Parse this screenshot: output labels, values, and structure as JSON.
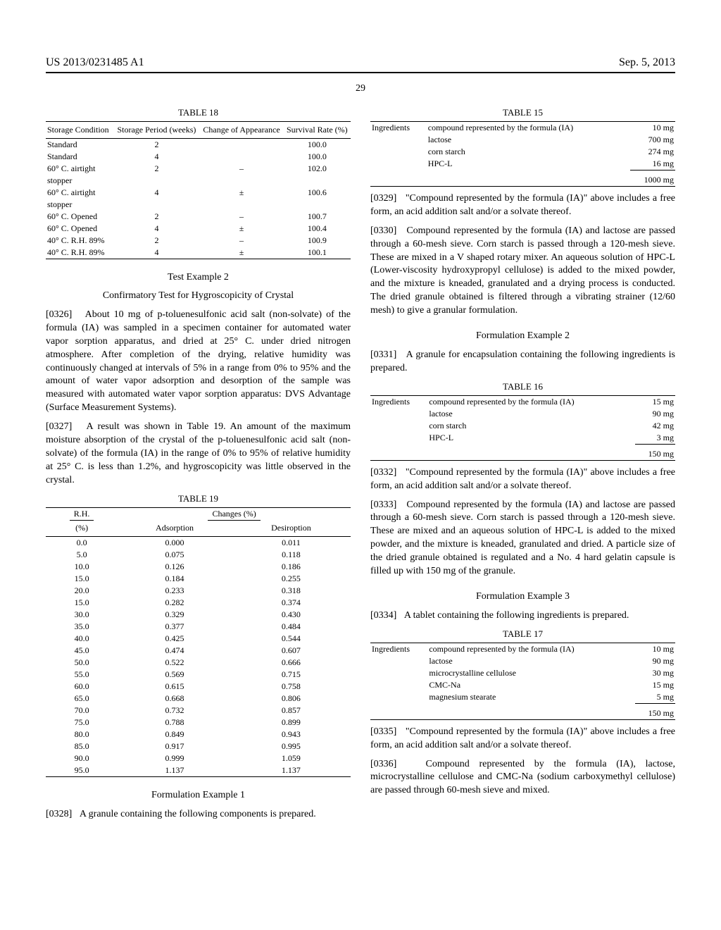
{
  "header": {
    "left": "US 2013/0231485 A1",
    "right": "Sep. 5, 2013",
    "page": "29"
  },
  "table18": {
    "caption": "TABLE 18",
    "headers": [
      "Storage Condition",
      "Storage Period (weeks)",
      "Change of Appearance",
      "Survival Rate (%)"
    ],
    "rows": [
      [
        "Standard",
        "2",
        "",
        "100.0"
      ],
      [
        "Standard",
        "4",
        "",
        "100.0"
      ],
      [
        "60° C. airtight",
        "2",
        "–",
        "102.0"
      ],
      [
        "stopper",
        "",
        "",
        ""
      ],
      [
        "60° C. airtight",
        "4",
        "±",
        "100.6"
      ],
      [
        "stopper",
        "",
        "",
        ""
      ],
      [
        "60° C. Opened",
        "2",
        "–",
        "100.7"
      ],
      [
        "60° C. Opened",
        "4",
        "±",
        "100.4"
      ],
      [
        "40° C. R.H. 89%",
        "2",
        "–",
        "100.9"
      ],
      [
        "40° C. R.H. 89%",
        "4",
        "±",
        "100.1"
      ]
    ]
  },
  "testEx2": {
    "title": "Test Example 2",
    "subtitle": "Confirmatory Test for Hygroscopicity of Crystal"
  },
  "para0326": {
    "num": "[0326]",
    "text": "About 10 mg of p-toluenesulfonic acid salt (non-solvate) of the formula (IA) was sampled in a specimen container for automated water vapor sorption apparatus, and dried at 25° C. under dried nitrogen atmosphere. After completion of the drying, relative humidity was continuously changed at intervals of 5% in a range from 0% to 95% and the amount of water vapor adsorption and desorption of the sample was measured with automated water vapor sorption apparatus: DVS Advantage (Surface Measurement Systems)."
  },
  "para0327": {
    "num": "[0327]",
    "text": "A result was shown in Table 19. An amount of the maximum moisture absorption of the crystal of the p-toluenesulfonic acid salt (non-solvate) of the formula (IA) in the range of 0% to 95% of relative humidity at 25° C. is less than 1.2%, and hygroscopicity was little observed in the crystal."
  },
  "table19": {
    "caption": "TABLE 19",
    "rh": "R.H.",
    "pct": "(%)",
    "changes": "Changes (%)",
    "ads": "Adsorption",
    "des": "Desiroption",
    "rows": [
      [
        "0.0",
        "0.000",
        "0.011"
      ],
      [
        "5.0",
        "0.075",
        "0.118"
      ],
      [
        "10.0",
        "0.126",
        "0.186"
      ],
      [
        "15.0",
        "0.184",
        "0.255"
      ],
      [
        "20.0",
        "0.233",
        "0.318"
      ],
      [
        "15.0",
        "0.282",
        "0.374"
      ],
      [
        "30.0",
        "0.329",
        "0.430"
      ],
      [
        "35.0",
        "0.377",
        "0.484"
      ],
      [
        "40.0",
        "0.425",
        "0.544"
      ],
      [
        "45.0",
        "0.474",
        "0.607"
      ],
      [
        "50.0",
        "0.522",
        "0.666"
      ],
      [
        "55.0",
        "0.569",
        "0.715"
      ],
      [
        "60.0",
        "0.615",
        "0.758"
      ],
      [
        "65.0",
        "0.668",
        "0.806"
      ],
      [
        "70.0",
        "0.732",
        "0.857"
      ],
      [
        "75.0",
        "0.788",
        "0.899"
      ],
      [
        "80.0",
        "0.849",
        "0.943"
      ],
      [
        "85.0",
        "0.917",
        "0.995"
      ],
      [
        "90.0",
        "0.999",
        "1.059"
      ],
      [
        "95.0",
        "1.137",
        "1.137"
      ]
    ]
  },
  "formEx1": {
    "title": "Formulation Example 1"
  },
  "para0328": {
    "num": "[0328]",
    "text": "A granule containing the following components is prepared."
  },
  "table15": {
    "caption": "TABLE 15",
    "label": "Ingredients",
    "rows": [
      [
        "compound represented by the formula (IA)",
        "10 mg"
      ],
      [
        "lactose",
        "700 mg"
      ],
      [
        "corn starch",
        "274 mg"
      ],
      [
        "HPC-L",
        "16 mg"
      ]
    ],
    "total": "1000 mg"
  },
  "para0329": {
    "num": "[0329]",
    "text": "\"Compound represented by the formula (IA)\" above includes a free form, an acid addition salt and/or a solvate thereof."
  },
  "para0330": {
    "num": "[0330]",
    "text": "Compound represented by the formula (IA) and lactose are passed through a 60-mesh sieve. Corn starch is passed through a 120-mesh sieve. These are mixed in a V shaped rotary mixer. An aqueous solution of HPC-L (Lower-viscosity hydroxypropyl cellulose) is added to the mixed powder, and the mixture is kneaded, granulated and a drying process is conducted. The dried granule obtained is filtered through a vibrating strainer (12/60 mesh) to give a granular formulation."
  },
  "formEx2": {
    "title": "Formulation Example 2"
  },
  "para0331": {
    "num": "[0331]",
    "text": "A granule for encapsulation containing the following ingredients is prepared."
  },
  "table16": {
    "caption": "TABLE 16",
    "label": "Ingredients",
    "rows": [
      [
        "compound represented by the formula (IA)",
        "15 mg"
      ],
      [
        "lactose",
        "90 mg"
      ],
      [
        "corn starch",
        "42 mg"
      ],
      [
        "HPC-L",
        "3 mg"
      ]
    ],
    "total": "150 mg"
  },
  "para0332": {
    "num": "[0332]",
    "text": "\"Compound represented by the formula (IA)\" above includes a free form, an acid addition salt and/or a solvate thereof."
  },
  "para0333": {
    "num": "[0333]",
    "text": "Compound represented by the formula (IA) and lactose are passed through a 60-mesh sieve. Corn starch is passed through a 120-mesh sieve. These are mixed and an aqueous solution of HPC-L is added to the mixed powder, and the mixture is kneaded, granulated and dried. A particle size of the dried granule obtained is regulated and a No. 4 hard gelatin capsule is filled up with 150 mg of the granule."
  },
  "formEx3": {
    "title": "Formulation Example 3"
  },
  "para0334": {
    "num": "[0334]",
    "text": "A tablet containing the following ingredients is prepared."
  },
  "table17": {
    "caption": "TABLE 17",
    "label": "Ingredients",
    "rows": [
      [
        "compound represented by the formula (IA)",
        "10 mg"
      ],
      [
        "lactose",
        "90 mg"
      ],
      [
        "microcrystalline cellulose",
        "30 mg"
      ],
      [
        "CMC-Na",
        "15 mg"
      ],
      [
        "magnesium stearate",
        "5 mg"
      ]
    ],
    "total": "150 mg"
  },
  "para0335": {
    "num": "[0335]",
    "text": "\"Compound represented by the formula (IA)\" above includes a free form, an acid addition salt and/or a solvate thereof."
  },
  "para0336": {
    "num": "[0336]",
    "text": "Compound represented by the formula (IA), lactose, microcrystalline cellulose and CMC-Na (sodium carboxymethyl cellulose) are passed through 60-mesh sieve and mixed."
  }
}
